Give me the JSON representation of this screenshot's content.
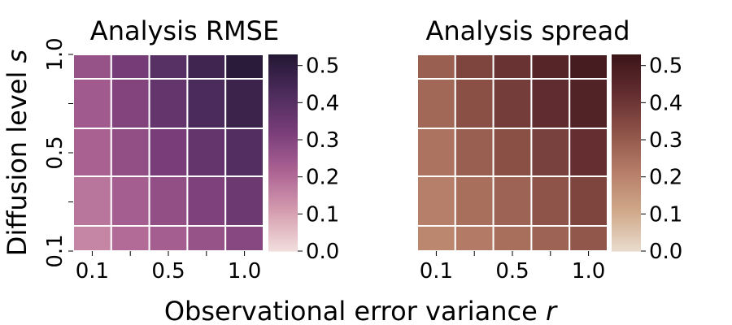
{
  "figure": {
    "xlabel_main": "Observational error variance ",
    "xlabel_var": "r",
    "ylabel_main": "Diffusion level ",
    "ylabel_var": "s"
  },
  "chart_data": [
    {
      "type": "heatmap",
      "title": "Analysis RMSE",
      "x_tick_labels": [
        "0.1",
        "0.5",
        "1.0"
      ],
      "y_tick_labels": [
        "1.0",
        "0.5",
        "0.1"
      ],
      "colorbar_ticks": [
        "0.0",
        "0.1",
        "0.2",
        "0.3",
        "0.4",
        "0.5"
      ],
      "value_range": [
        0,
        0.53
      ],
      "colormap": [
        "#f2dedc",
        "#d59eb0",
        "#ad6494",
        "#7a3e7a",
        "#4d2c5d",
        "#231733"
      ],
      "rows_top_to_bottom": [
        [
          0.26,
          0.33,
          0.4,
          0.46,
          0.51
        ],
        [
          0.24,
          0.3,
          0.37,
          0.43,
          0.47
        ],
        [
          0.22,
          0.27,
          0.32,
          0.37,
          0.41
        ],
        [
          0.18,
          0.23,
          0.27,
          0.31,
          0.35
        ],
        [
          0.15,
          0.2,
          0.23,
          0.26,
          0.29
        ]
      ]
    },
    {
      "type": "heatmap",
      "title": "Analysis spread",
      "x_tick_labels": [
        "0.1",
        "0.5",
        "1.0"
      ],
      "y_tick_labels": [],
      "colorbar_ticks": [
        "0.0",
        "0.1",
        "0.2",
        "0.3",
        "0.4",
        "0.5"
      ],
      "value_range": [
        0,
        0.53
      ],
      "colormap": [
        "#e9dccd",
        "#d0a98a",
        "#b67e68",
        "#8f5449",
        "#632d30",
        "#3b1519"
      ],
      "rows_top_to_bottom": [
        [
          0.29,
          0.36,
          0.41,
          0.46,
          0.5
        ],
        [
          0.27,
          0.33,
          0.38,
          0.43,
          0.47
        ],
        [
          0.24,
          0.29,
          0.33,
          0.37,
          0.42
        ],
        [
          0.21,
          0.25,
          0.28,
          0.32,
          0.36
        ],
        [
          0.19,
          0.22,
          0.25,
          0.28,
          0.31
        ]
      ]
    }
  ]
}
